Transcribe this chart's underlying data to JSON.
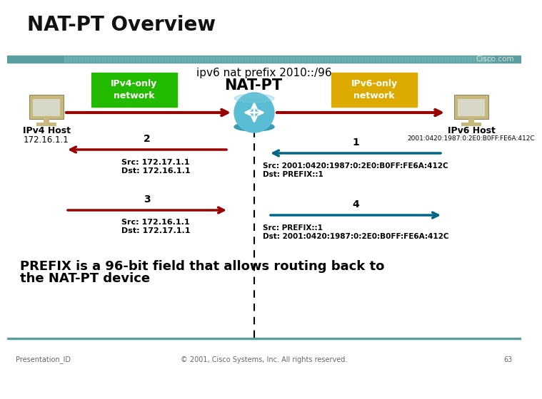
{
  "title": "NAT-PT Overview",
  "subtitle": "ipv6 nat prefix 2010::/96",
  "cisco_text": "Cisco.com",
  "ipv4_box_color": "#22bb00",
  "ipv6_box_color": "#ddaa00",
  "ipv4_box_label": "IPv4-only\nnetwork",
  "ipv6_box_label": "IPv6-only\nnetwork",
  "natpt_label": "NAT-PT",
  "ipv4_host_label": "IPv4 Host",
  "ipv6_host_label": "IPv6 Host",
  "ipv4_addr": "172.16.1.1",
  "ipv6_addr": "2001:0420:1987:0:2E0:B0FF:FE6A:412C",
  "arrow_color_dark": "#990000",
  "arrow_color_teal": "#006688",
  "teal_bar_color": "#5a9ea0",
  "bg_color": "#f0f0f0",
  "flow1_label": "1",
  "flow2_label": "2",
  "flow3_label": "3",
  "flow4_label": "4",
  "flow2_src": "Src: 172.17.1.1",
  "flow2_dst": "Dst: 172.16.1.1",
  "flow3_src": "Src: 172.16.1.1",
  "flow3_dst": "Dst: 172.17.1.1",
  "flow1_src": "Src: 2001:0420:1987:0:2E0:B0FF:FE6A:412C",
  "flow1_dst": "Dst: PREFIX::1",
  "flow4_src": "Src: PREFIX::1",
  "flow4_dst": "Dst: 2001:0420:1987:0:2E0:B0FF:FE6A:412C",
  "footer_text": "Presentation_ID",
  "footer_copy": "© 2001, Cisco Systems, Inc. All rights reserved.",
  "footer_page": "63",
  "prefix_footer_line1": "PREFIX is a 96-bit field that allows routing back to",
  "prefix_footer_line2": "the NAT-PT device"
}
